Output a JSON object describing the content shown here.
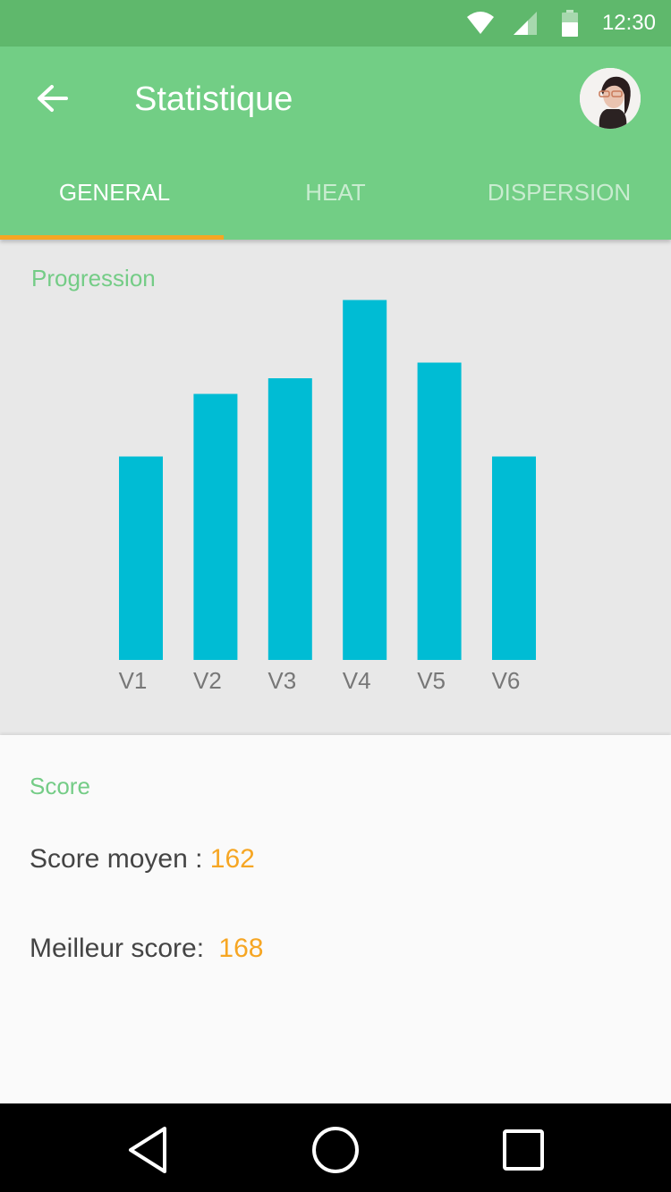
{
  "status_bar": {
    "time": "12:30"
  },
  "header": {
    "title": "Statistique"
  },
  "tabs": [
    {
      "label": "GENERAL",
      "active": true
    },
    {
      "label": "HEAT",
      "active": false
    },
    {
      "label": "DISPERSION",
      "active": false
    }
  ],
  "progression": {
    "label": "Progression"
  },
  "chart_data": {
    "type": "bar",
    "categories": [
      "V1",
      "V2",
      "V3",
      "V4",
      "V5",
      "V6"
    ],
    "values": [
      130,
      170,
      180,
      230,
      190,
      130
    ],
    "ylim": [
      0,
      240
    ],
    "grid": false,
    "color": "#00bcd4"
  },
  "score": {
    "label": "Score",
    "average_label": "Score moyen : ",
    "average_value": "162",
    "best_label": "Meilleur score: ",
    "best_value": "168"
  },
  "colors": {
    "primary": "#72ce85",
    "status_bar": "#5fb86c",
    "accent": "#f6a623",
    "bar": "#00bcd4"
  }
}
